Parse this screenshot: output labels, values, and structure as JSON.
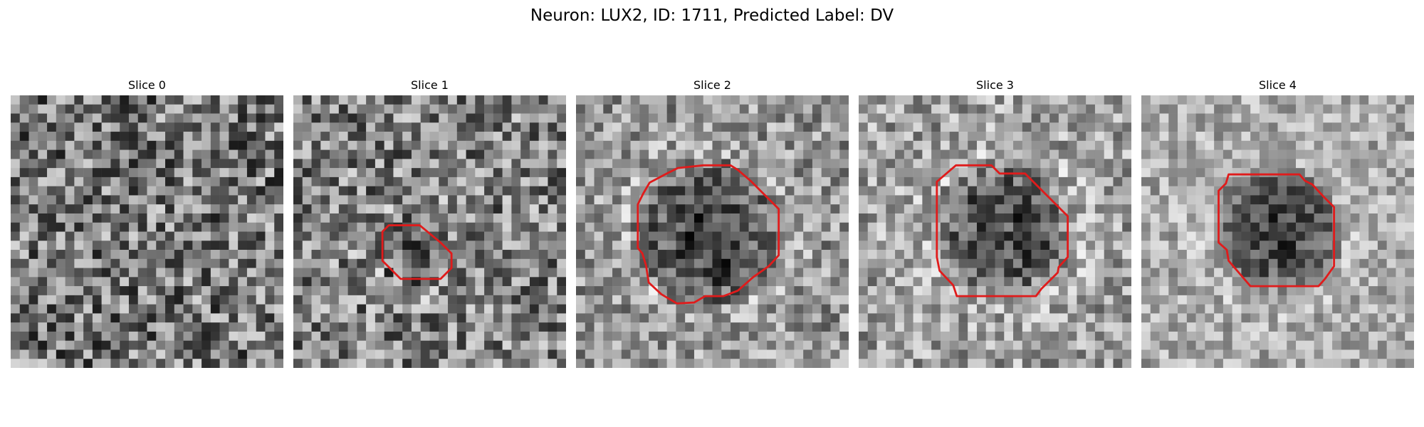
{
  "figure": {
    "title": "Neuron: LUX2, ID: 1711, Predicted Label: DV"
  },
  "colors": {
    "contour": "#e01b1b",
    "background": "#ffffff"
  },
  "panels": [
    {
      "title": "Slice 0",
      "roi": "none"
    },
    {
      "title": "Slice 1",
      "roi": "small"
    },
    {
      "title": "Slice 2",
      "roi": "large"
    },
    {
      "title": "Slice 3",
      "roi": "large"
    },
    {
      "title": "Slice 4",
      "roi": "medium"
    }
  ]
}
